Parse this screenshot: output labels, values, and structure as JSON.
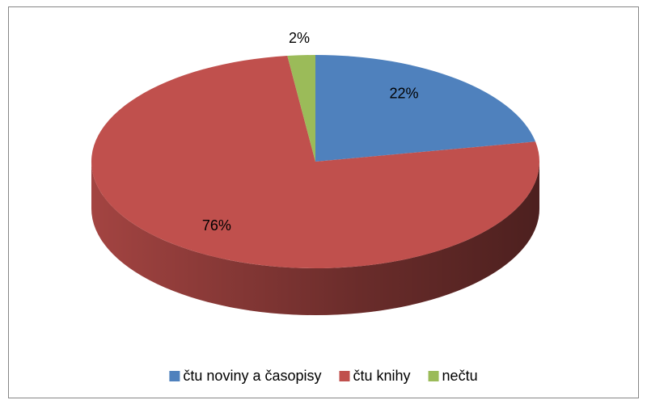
{
  "chart_data": {
    "type": "pie",
    "categories": [
      "čtu noviny a časopisy",
      "čtu knihy",
      "nečtu"
    ],
    "values": [
      22,
      76,
      2
    ],
    "value_labels": [
      "22%",
      "76%",
      "2%"
    ],
    "colors": [
      "#4f81bd",
      "#c0504d",
      "#9bbb59"
    ],
    "legend": "bottom"
  }
}
